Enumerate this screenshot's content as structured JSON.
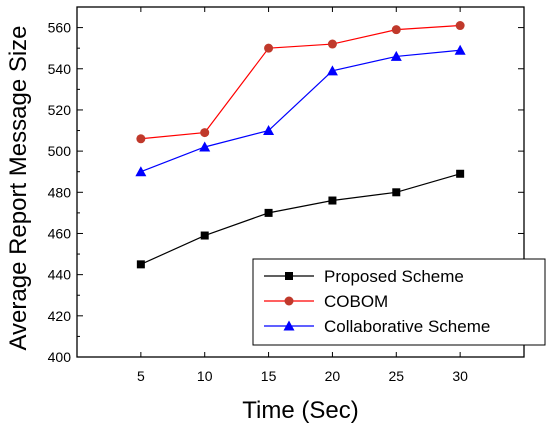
{
  "chart_data": {
    "type": "line",
    "title": "",
    "xlabel": "Time (Sec)",
    "ylabel": "Average Report Message Size",
    "x": [
      5,
      10,
      15,
      20,
      25,
      30
    ],
    "xticks": [
      5,
      10,
      15,
      20,
      25,
      30
    ],
    "yticks": [
      400,
      420,
      440,
      460,
      480,
      500,
      520,
      540,
      560
    ],
    "xlim": [
      0,
      35
    ],
    "ylim": [
      400,
      570
    ],
    "grid": false,
    "legend_position": "bottom-right",
    "series": [
      {
        "name": "Proposed Scheme",
        "values": [
          445,
          459,
          470,
          476,
          480,
          489
        ],
        "color": "#000000",
        "marker": "square"
      },
      {
        "name": "COBOM",
        "values": [
          506,
          509,
          550,
          552,
          559,
          561
        ],
        "color": "#ff0000",
        "marker": "circle",
        "marker_color": "#c0392b"
      },
      {
        "name": "Collaborative Scheme",
        "values": [
          490,
          502,
          510,
          539,
          546,
          549
        ],
        "color": "#0000ff",
        "marker": "triangle"
      }
    ]
  }
}
